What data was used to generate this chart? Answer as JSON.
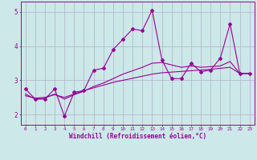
{
  "title": "",
  "xlabel": "Windchill (Refroidissement éolien,°C)",
  "x": [
    0,
    1,
    2,
    3,
    4,
    5,
    6,
    7,
    8,
    9,
    10,
    11,
    12,
    13,
    14,
    15,
    16,
    17,
    18,
    19,
    20,
    21,
    22,
    23
  ],
  "y_jagged": [
    2.75,
    2.45,
    2.45,
    2.75,
    1.95,
    2.65,
    2.7,
    3.3,
    3.35,
    3.9,
    4.2,
    4.5,
    4.45,
    5.05,
    3.6,
    3.05,
    3.05,
    3.5,
    3.25,
    3.3,
    3.65,
    4.65,
    3.2,
    3.2
  ],
  "y_smooth": [
    2.6,
    2.45,
    2.48,
    2.6,
    2.45,
    2.58,
    2.68,
    2.82,
    2.92,
    3.05,
    3.18,
    3.28,
    3.38,
    3.5,
    3.52,
    3.45,
    3.38,
    3.42,
    3.38,
    3.4,
    3.42,
    3.55,
    3.2,
    3.2
  ],
  "y_trend": [
    2.55,
    2.48,
    2.5,
    2.58,
    2.5,
    2.6,
    2.7,
    2.78,
    2.86,
    2.94,
    3.0,
    3.06,
    3.12,
    3.18,
    3.22,
    3.24,
    3.26,
    3.28,
    3.3,
    3.32,
    3.35,
    3.38,
    3.2,
    3.2
  ],
  "line_color": "#990099",
  "bg_color": "#cce8e8",
  "grid_color": "#b0b0cc",
  "ylim": [
    1.7,
    5.3
  ],
  "xlim": [
    -0.5,
    23.5
  ]
}
